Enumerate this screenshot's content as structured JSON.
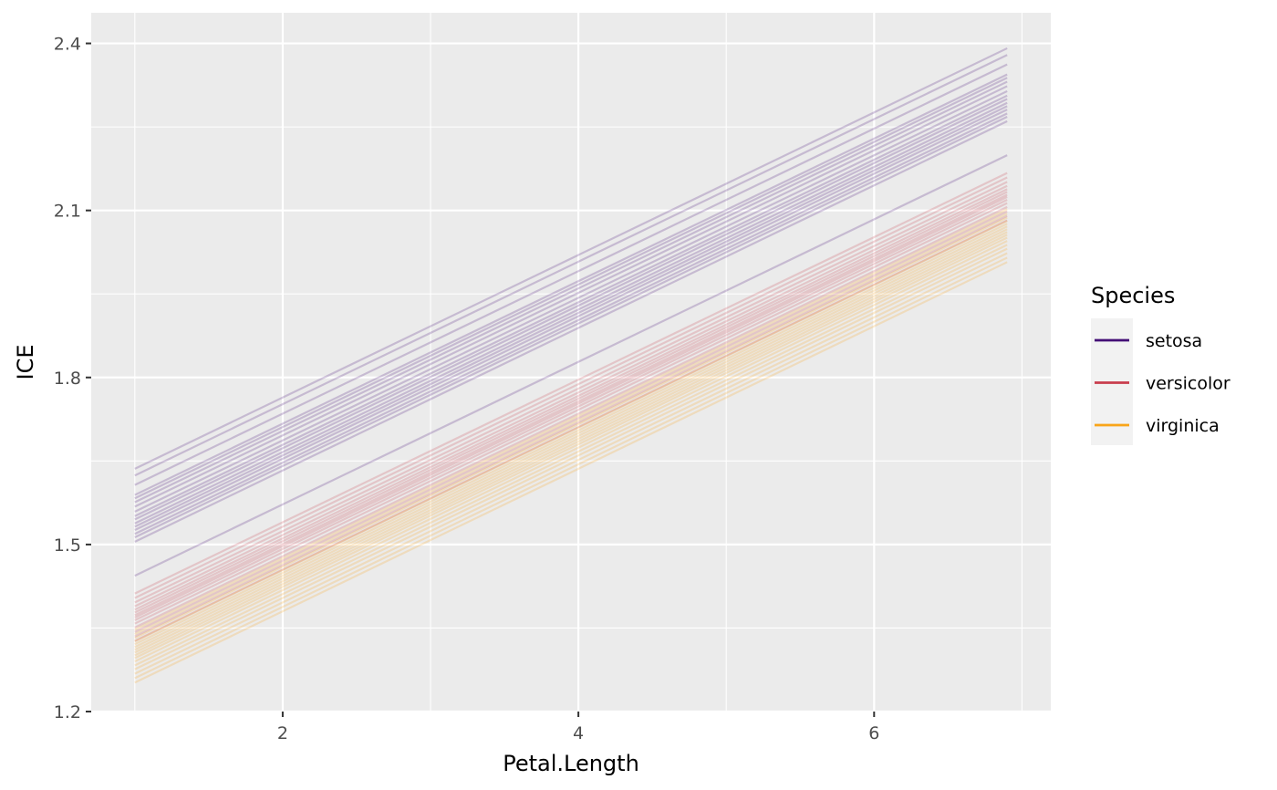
{
  "chart_data": {
    "type": "line",
    "title": "",
    "xlabel": "Petal.Length",
    "ylabel": "ICE",
    "xlim": [
      0.705,
      7.195
    ],
    "ylim": [
      1.2,
      2.455
    ],
    "x_ticks": [
      2,
      4,
      6
    ],
    "x_tick_labels": [
      "2",
      "4",
      "6"
    ],
    "x_minor_ticks": [
      1,
      3,
      5,
      7
    ],
    "y_ticks": [
      1.2,
      1.5,
      1.8,
      2.1,
      2.4
    ],
    "y_tick_labels": [
      "1.2",
      "1.5",
      "1.8",
      "2.1",
      "2.4"
    ],
    "y_minor_ticks": [
      1.35,
      1.65,
      1.95,
      2.25
    ],
    "x_range": [
      1.0,
      6.9
    ],
    "slope_per_unit": 0.128,
    "grid": true,
    "background": "#EBEBEB",
    "line_opacity": 0.22,
    "legend": {
      "title": "Species",
      "placement": "right",
      "entries": [
        "setosa",
        "versicolor",
        "virginica"
      ]
    },
    "series": [
      {
        "name": "setosa",
        "color": "#440F76",
        "start_values": [
          1.636,
          1.624,
          1.607,
          1.589,
          1.583,
          1.576,
          1.568,
          1.559,
          1.551,
          1.545,
          1.538,
          1.532,
          1.526,
          1.519,
          1.513,
          1.505,
          1.444
        ]
      },
      {
        "name": "versicolor",
        "color": "#C83E4E",
        "start_values": [
          1.412,
          1.404,
          1.396,
          1.389,
          1.383,
          1.378,
          1.373,
          1.369,
          1.364,
          1.358,
          1.351,
          1.343,
          1.335,
          1.327
        ]
      },
      {
        "name": "virginica",
        "color": "#F9A51A",
        "start_values": [
          1.347,
          1.339,
          1.332,
          1.326,
          1.321,
          1.316,
          1.311,
          1.306,
          1.301,
          1.296,
          1.29,
          1.283,
          1.276,
          1.268,
          1.26,
          1.252
        ]
      }
    ]
  }
}
